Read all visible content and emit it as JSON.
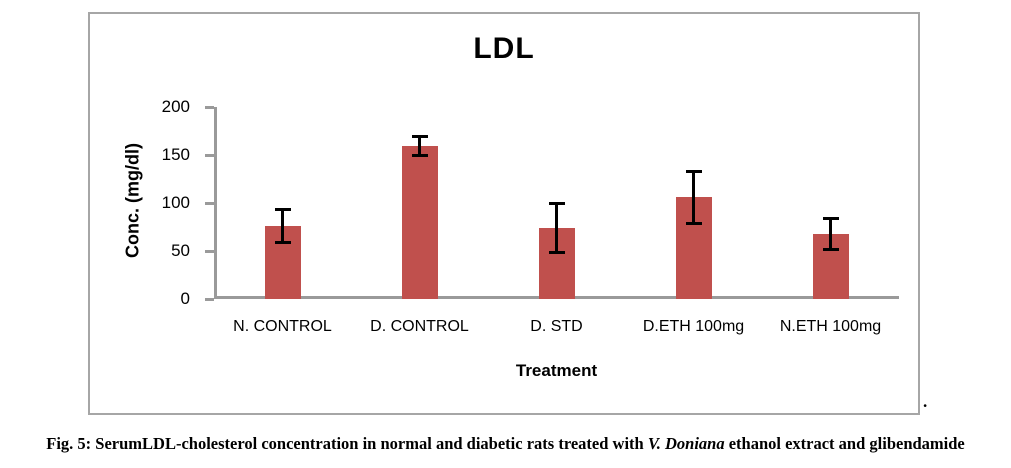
{
  "chart_data": {
    "type": "bar",
    "title": "LDL",
    "xlabel": "Treatment",
    "ylabel": "Conc. (mg/dl)",
    "ylim": [
      0,
      200
    ],
    "yticks": [
      0,
      50,
      100,
      150,
      200
    ],
    "categories": [
      "N. CONTROL",
      "D. CONTROL",
      "D. STD",
      "D.ETH 100mg",
      "N.ETH 100mg"
    ],
    "series": [
      {
        "name": "LDL",
        "values": [
          76,
          159,
          74,
          106,
          68
        ],
        "errors": [
          17,
          10,
          26,
          27,
          16
        ]
      }
    ],
    "bar_color": "#c0504d",
    "error_bar_color": "#000000",
    "axis_color": "#9a9a9a",
    "grid": false,
    "legend_position": "none"
  },
  "caption": {
    "part1": "Fig. 5: SerumLDL-cholesterol concentration in normal and diabetic rats treated with ",
    "italic": "V. Doniana",
    "part2": " ethanol extract and glibendamide"
  },
  "stray_mark": "."
}
